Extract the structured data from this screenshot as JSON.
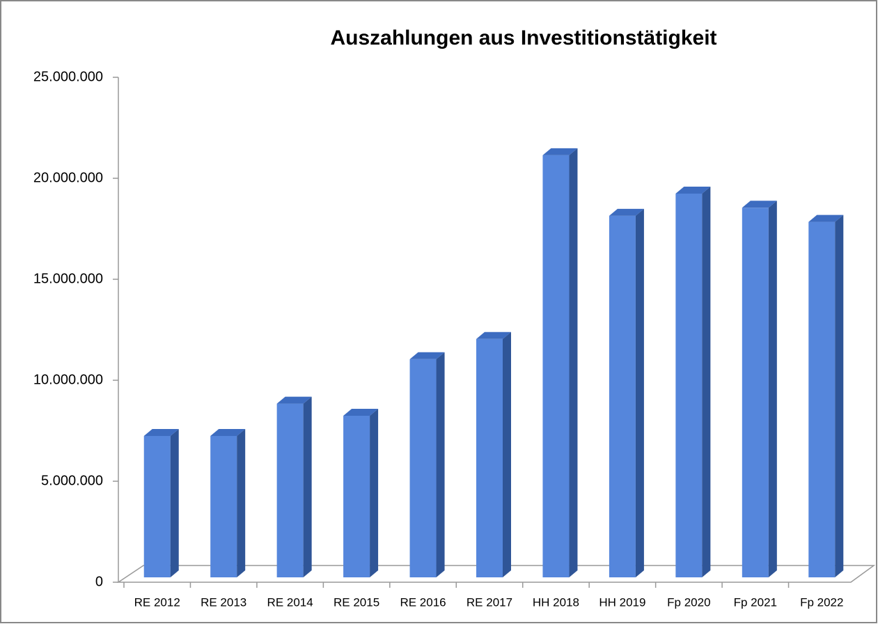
{
  "chart_data": {
    "type": "bar",
    "title": "Auszahlungen aus Investitionstätigkeit",
    "categories": [
      "RE 2012",
      "RE 2013",
      "RE 2014",
      "RE 2015",
      "RE 2016",
      "RE 2017",
      "HH 2018",
      "HH 2019",
      "Fp 2020",
      "Fp 2021",
      "Fp 2022"
    ],
    "values": [
      7000000,
      7000000,
      8600000,
      8000000,
      10800000,
      11800000,
      20900000,
      17900000,
      19000000,
      18300000,
      17600000
    ],
    "color": "#5586dc",
    "ylim": [
      0,
      25000000
    ],
    "yticks": [
      0,
      {
        "value": 5000000,
        "label": "5.000.000"
      },
      {
        "value": 10000000,
        "label": "10.000.000"
      },
      {
        "value": 15000000,
        "label": "15.000.000"
      },
      {
        "value": 20000000,
        "label": "20.000.000"
      },
      {
        "value": 25000000,
        "label": "25.000.000"
      }
    ],
    "grid": false
  }
}
